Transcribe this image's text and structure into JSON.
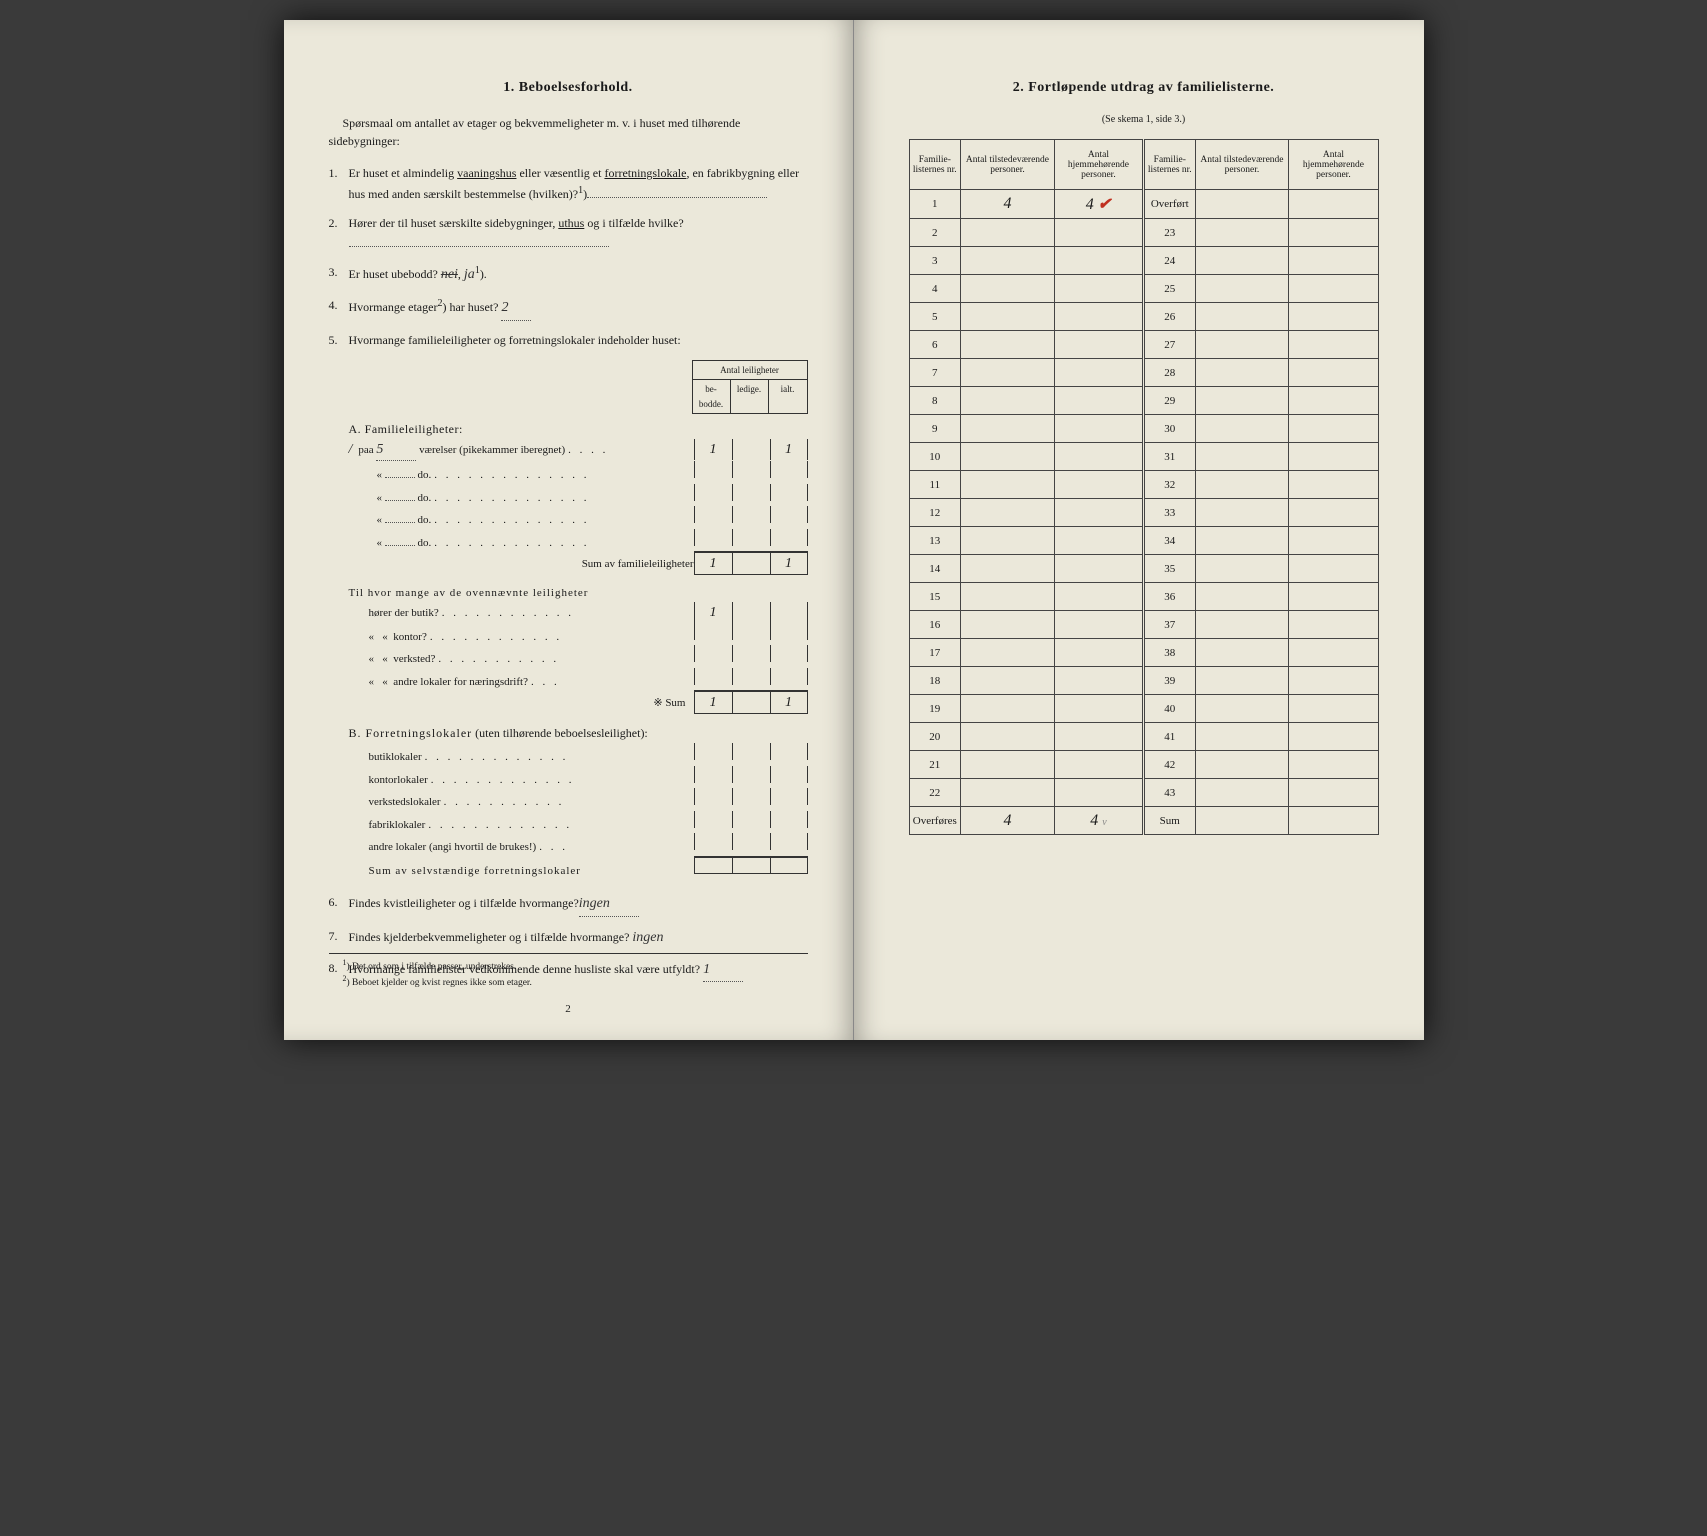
{
  "left": {
    "title": "1.   Beboelsesforhold.",
    "intro": "Spørsmaal om antallet av etager og bekvemmeligheter m. v. i huset med tilhørende sidebygninger:",
    "q1_pre": "Er huset et almindelig ",
    "q1_u1": "vaaningshus",
    "q1_mid": " eller væsentlig et ",
    "q1_u2": "forretningslokale",
    "q1_post": ", en fabrikbygning eller hus med anden særskilt bestemmelse (hvilken)?",
    "q1_sup": "1",
    "q2_pre": "Hører der til huset særskilte sidebygninger, ",
    "q2_u": "uthus",
    "q2_post": " og i tilfælde hvilke?",
    "q3_pre": "Er huset ubebodd?  ",
    "q3_strike": "nei",
    "q3_hw": "ja",
    "q3_sup": "1",
    "q4_pre": "Hvormange etager",
    "q4_sup": "2",
    "q4_mid": ") har huset?",
    "q4_hw": "2",
    "q5": "Hvormange familieleiligheter og forretningslokaler indeholder huset:",
    "leil_header": "Antal leiligheter",
    "leil_cols": [
      "be-\nbodde.",
      "ledige.",
      "ialt."
    ],
    "secA": "A. Familieleiligheter:",
    "a_slash": "/",
    "a_paa": "paa",
    "a_rooms": "5",
    "a_rooms_txt": "værelser (pikekammer iberegnet)",
    "a_do": "do.",
    "a_sum": "Sum av familieleiligheter",
    "a_vals_1": [
      "1",
      "",
      "1"
    ],
    "a_sum_vals": [
      "1",
      "",
      "1"
    ],
    "til_hvor": "Til hvor mange av de ovennævnte leiligheter",
    "horer_butik": "hører der butik?",
    "kontor": "kontor?",
    "verksted": "verksted?",
    "andre_lok": "andre lokaler for næringsdrift?",
    "sum_label": "Sum",
    "butik_vals": [
      "1",
      "",
      ""
    ],
    "sum2_vals": [
      "1",
      "",
      "1"
    ],
    "secB": "B. Forretningslokaler",
    "secB_paren": " (uten tilhørende beboelsesleilighet):",
    "b_rows": [
      "butiklokaler",
      "kontorlokaler",
      "verkstedslokaler",
      "fabriklokaler",
      "andre lokaler (angi hvortil de brukes!)"
    ],
    "b_sum": "Sum av selvstændige forretningslokaler",
    "q6": "Findes kvistleiligheter og i tilfælde hvormange?",
    "q6_hw": "ingen",
    "q7": "Findes kjelderbekvemmeligheter og i tilfælde hvormange?",
    "q7_hw": "ingen",
    "q8": "Hvormange familielister vedkommende denne husliste skal være utfyldt?",
    "q8_hw": "1",
    "foot1": "Det ord som i tilfælde passer, understrekes.",
    "foot2": "Beboet kjelder og kvist regnes ikke som etager.",
    "page_num": "2"
  },
  "right": {
    "title": "2.   Fortløpende utdrag av familielisterne.",
    "subtitle": "(Se skema 1, side 3.)",
    "headers": [
      "Familie-\nlisternes\nnr.",
      "Antal\ntilstedeværende\npersoner.",
      "Antal\nhjemmehørende\npersoner.",
      "Familie-\nlisternes\nnr.",
      "Antal\ntilstedeværende\npersoner.",
      "Antal\nhjemmehørende\npersoner."
    ],
    "row1": {
      "nr": "1",
      "tilstede": "4",
      "hjemme": "4",
      "check": "✔"
    },
    "overfort": "Overført",
    "left_nrs": [
      "1",
      "2",
      "3",
      "4",
      "5",
      "6",
      "7",
      "8",
      "9",
      "10",
      "11",
      "12",
      "13",
      "14",
      "15",
      "16",
      "17",
      "18",
      "19",
      "20",
      "21",
      "22"
    ],
    "right_nrs": [
      "Overført",
      "23",
      "24",
      "25",
      "26",
      "27",
      "28",
      "29",
      "30",
      "31",
      "32",
      "33",
      "34",
      "35",
      "36",
      "37",
      "38",
      "39",
      "40",
      "41",
      "42",
      "43"
    ],
    "overfores": "Overføres",
    "sum": "Sum",
    "overfores_vals": [
      "4",
      "4"
    ]
  }
}
